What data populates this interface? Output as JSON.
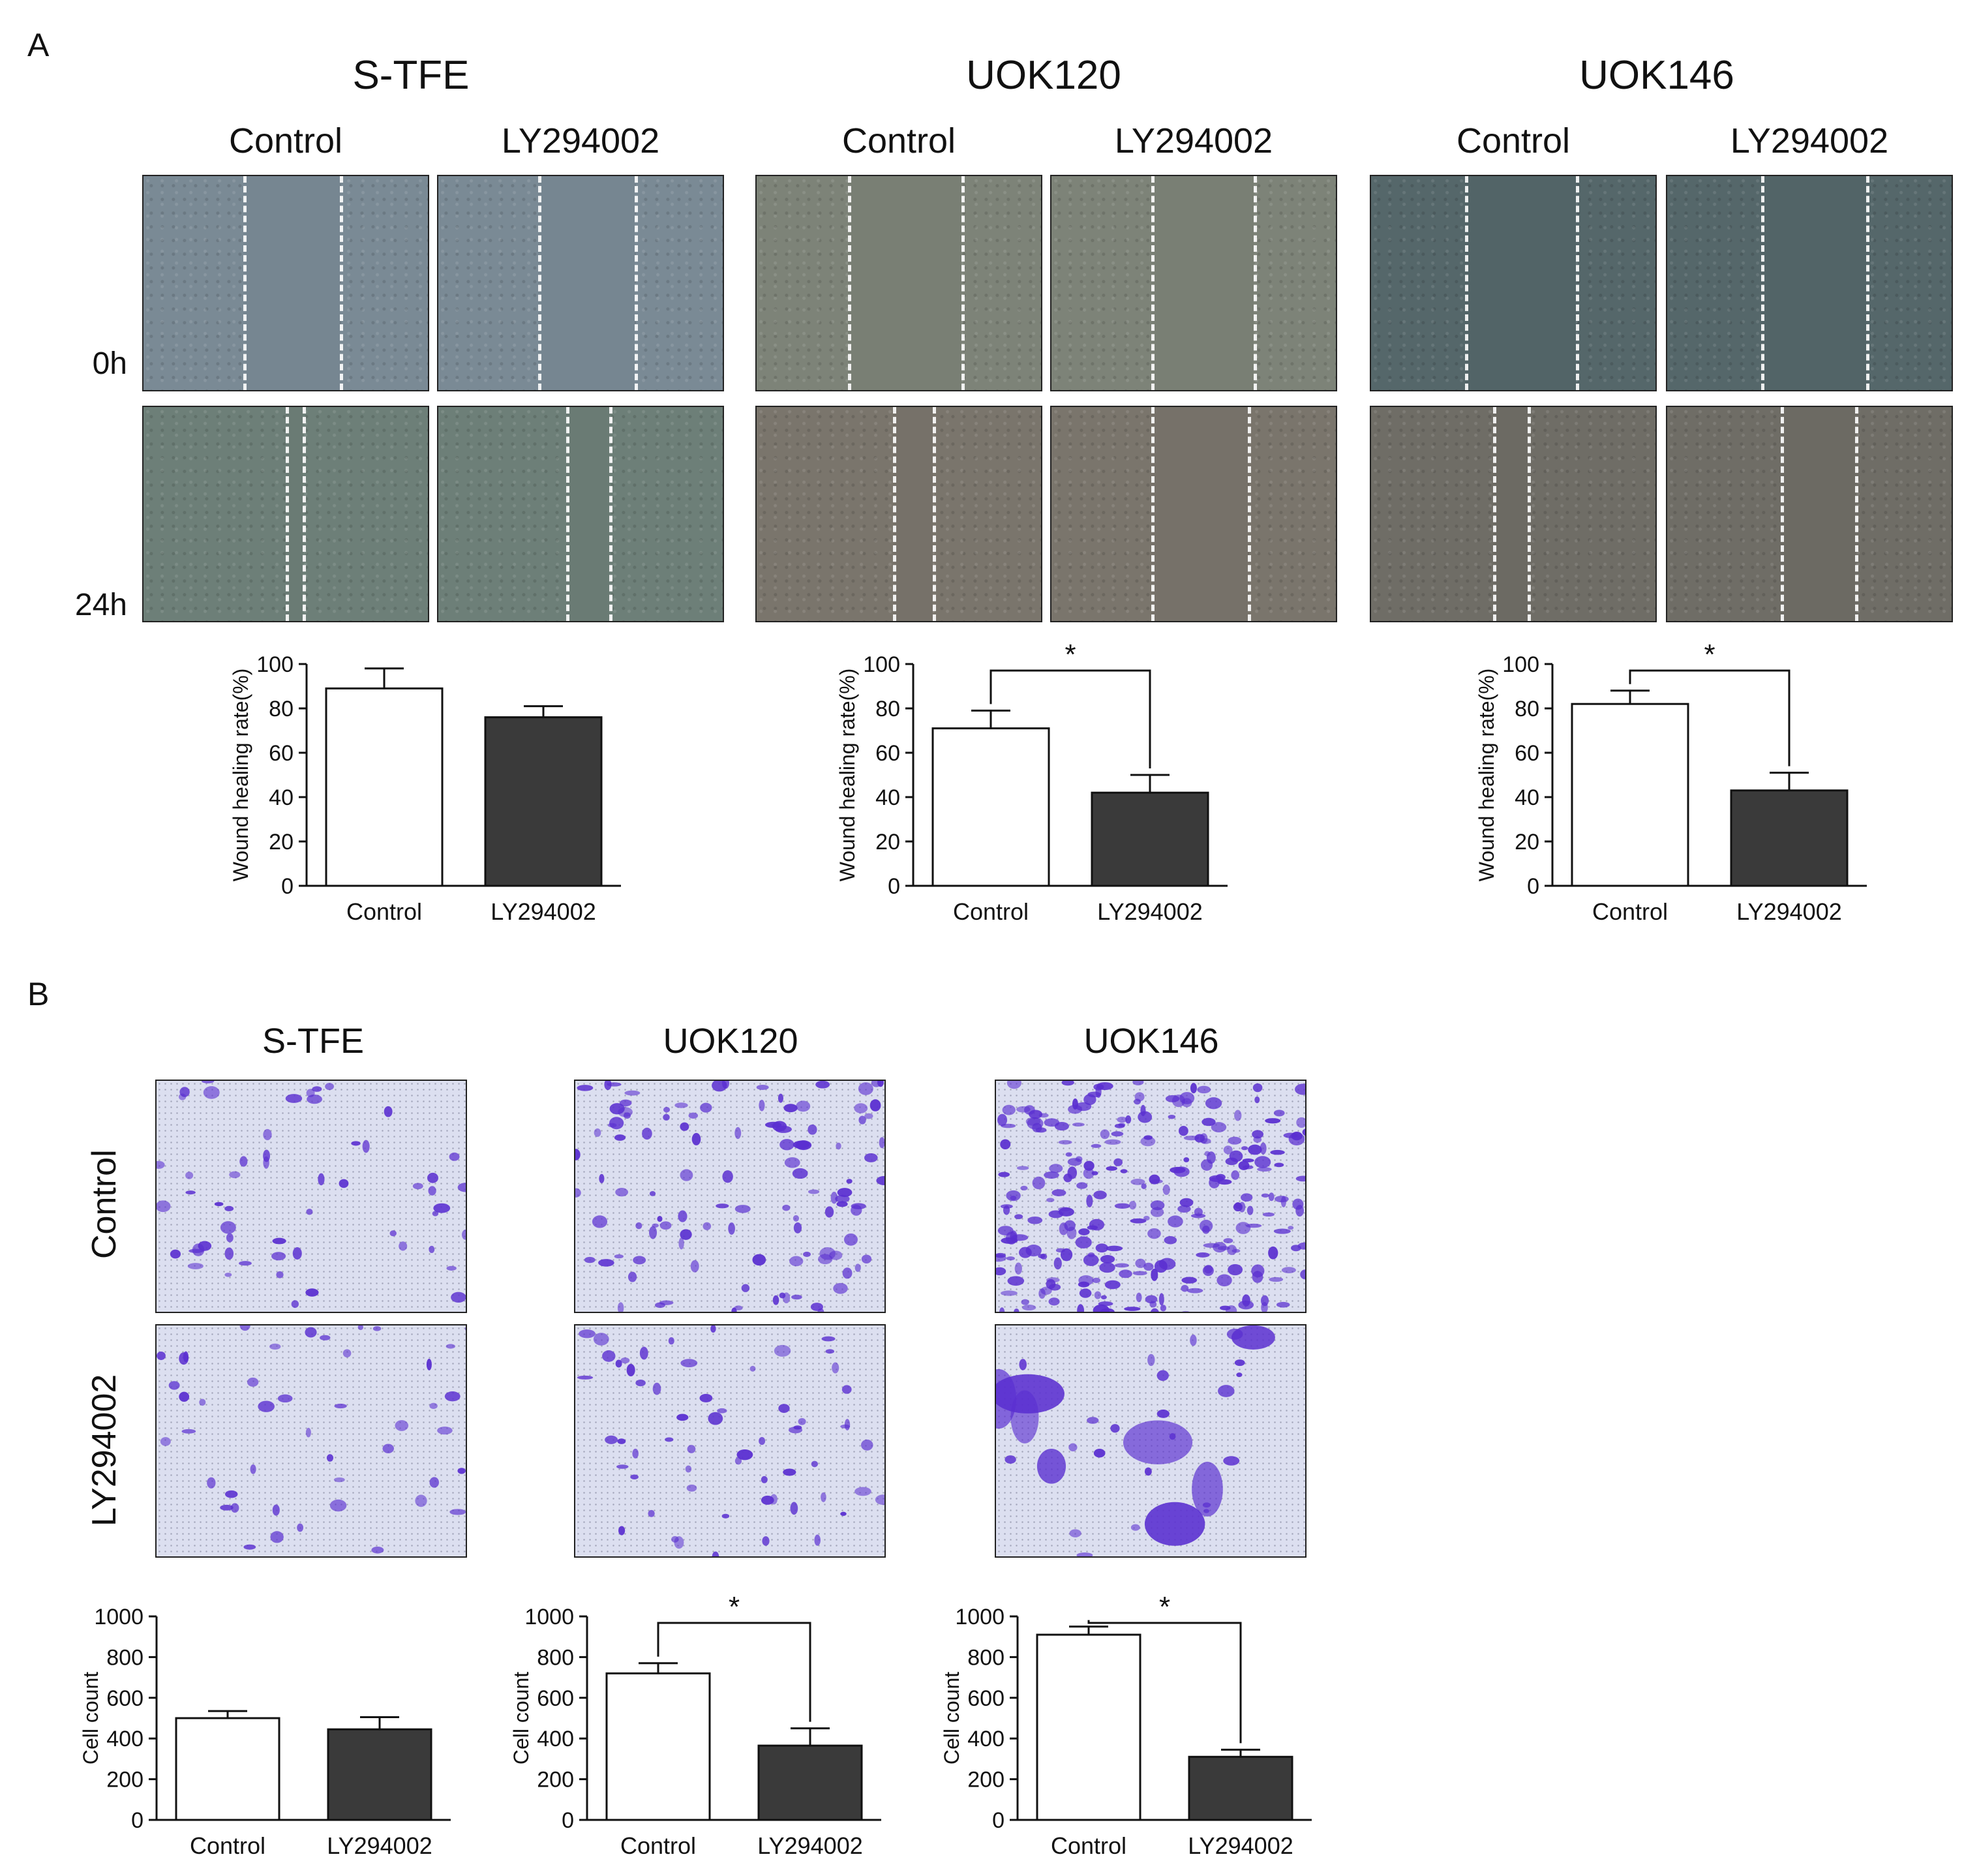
{
  "panel_a": {
    "letter": "A",
    "time_labels": [
      "0h",
      "24h"
    ],
    "conditions": [
      "Control",
      "LY294002"
    ],
    "cell_lines": [
      {
        "name": "S-TFE",
        "tint_0h": "#7a8a95",
        "tint_24h": "#6d7f78",
        "gap_0h": [
          0.35,
          0.69
        ],
        "gap_24h": [
          0.5,
          0.56
        ],
        "gap_ly_0h": [
          0.35,
          0.69
        ],
        "gap_ly_24h": [
          0.45,
          0.6
        ]
      },
      {
        "name": "UOK120",
        "tint_0h": "#7d8378",
        "tint_24h": "#7a756c",
        "gap_0h": [
          0.32,
          0.72
        ],
        "gap_24h": [
          0.48,
          0.62
        ],
        "gap_ly_0h": [
          0.35,
          0.71
        ],
        "gap_ly_24h": [
          0.35,
          0.69
        ]
      },
      {
        "name": "UOK146",
        "tint_0h": "#55676a",
        "tint_24h": "#6f6d66",
        "gap_0h": [
          0.33,
          0.72
        ],
        "gap_24h": [
          0.43,
          0.55
        ],
        "gap_ly_0h": [
          0.33,
          0.7
        ],
        "gap_ly_24h": [
          0.4,
          0.66
        ]
      }
    ]
  },
  "panel_b": {
    "letter": "B",
    "row_labels": [
      "Control",
      "LY294002"
    ],
    "cell_lines": [
      "S-TFE",
      "UOK120",
      "UOK146"
    ],
    "stain_color": "#5a2fd0",
    "background_color": "#dcdff0"
  },
  "chart_data": [
    {
      "type": "bar",
      "panel": "A",
      "cell_line": "S-TFE",
      "categories": [
        "Control",
        "LY294002"
      ],
      "values": [
        89,
        76
      ],
      "errors": [
        9,
        5
      ],
      "ylabel": "Wound healing rate(%)",
      "ylim": [
        0,
        100
      ],
      "yticks": [
        0,
        20,
        40,
        60,
        80,
        100
      ],
      "significance": ""
    },
    {
      "type": "bar",
      "panel": "A",
      "cell_line": "UOK120",
      "categories": [
        "Control",
        "LY294002"
      ],
      "values": [
        71,
        42
      ],
      "errors": [
        8,
        8
      ],
      "ylabel": "Wound healing rate(%)",
      "ylim": [
        0,
        100
      ],
      "yticks": [
        0,
        20,
        40,
        60,
        80,
        100
      ],
      "significance": "*"
    },
    {
      "type": "bar",
      "panel": "A",
      "cell_line": "UOK146",
      "categories": [
        "Control",
        "LY294002"
      ],
      "values": [
        82,
        43
      ],
      "errors": [
        6,
        8
      ],
      "ylabel": "Wound healing rate(%)",
      "ylim": [
        0,
        100
      ],
      "yticks": [
        0,
        20,
        40,
        60,
        80,
        100
      ],
      "significance": "*"
    },
    {
      "type": "bar",
      "panel": "B",
      "cell_line": "S-TFE",
      "categories": [
        "Control",
        "LY294002"
      ],
      "values": [
        500,
        445
      ],
      "errors": [
        35,
        60
      ],
      "ylabel": "Cell count",
      "ylim": [
        0,
        1000
      ],
      "yticks": [
        0,
        200,
        400,
        600,
        800,
        1000
      ],
      "significance": ""
    },
    {
      "type": "bar",
      "panel": "B",
      "cell_line": "UOK120",
      "categories": [
        "Control",
        "LY294002"
      ],
      "values": [
        720,
        365
      ],
      "errors": [
        50,
        85
      ],
      "ylabel": "Cell count",
      "ylim": [
        0,
        1000
      ],
      "yticks": [
        0,
        200,
        400,
        600,
        800,
        1000
      ],
      "significance": "*"
    },
    {
      "type": "bar",
      "panel": "B",
      "cell_line": "UOK146",
      "categories": [
        "Control",
        "LY294002"
      ],
      "values": [
        910,
        310
      ],
      "errors": [
        40,
        35
      ],
      "ylabel": "Cell count",
      "ylim": [
        0,
        1000
      ],
      "yticks": [
        0,
        200,
        400,
        600,
        800,
        1000
      ],
      "significance": "*"
    }
  ],
  "colors": {
    "control_fill": "#ffffff",
    "treatment_fill": "#3a3a3a",
    "axis": "#111111"
  }
}
